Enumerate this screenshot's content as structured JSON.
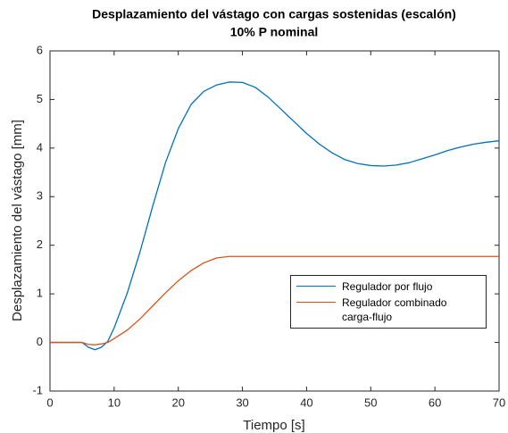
{
  "chart_data": {
    "type": "line",
    "title": "Desplazamiento del vástago con cargas sostenidas (escalón)",
    "subtitle": "10% P nominal",
    "x_label": "Tiempo    [s]",
    "y_label": "Desplazamiento del vástago   [mm]",
    "x": [
      0,
      5,
      6,
      7,
      8,
      9,
      10,
      12,
      14,
      16,
      18,
      20,
      22,
      24,
      26,
      28,
      30,
      32,
      34,
      36,
      38,
      40,
      42,
      44,
      46,
      48,
      50,
      52,
      54,
      56,
      58,
      60,
      62,
      64,
      66,
      68,
      70
    ],
    "series": [
      {
        "name": "Regulador por flujo",
        "color": "#0072bd",
        "values": [
          0,
          0,
          -0.1,
          -0.15,
          -0.1,
          0.02,
          0.3,
          1.0,
          1.85,
          2.8,
          3.7,
          4.4,
          4.9,
          5.17,
          5.3,
          5.36,
          5.35,
          5.25,
          5.05,
          4.8,
          4.55,
          4.3,
          4.08,
          3.9,
          3.76,
          3.68,
          3.64,
          3.63,
          3.65,
          3.7,
          3.78,
          3.86,
          3.95,
          4.02,
          4.08,
          4.12,
          4.15
        ]
      },
      {
        "name": "Regulador combinado carga-flujo",
        "color": "#d95319",
        "values": [
          0,
          0,
          -0.04,
          -0.05,
          -0.03,
          0,
          0.08,
          0.25,
          0.48,
          0.75,
          1.02,
          1.27,
          1.48,
          1.64,
          1.74,
          1.77,
          1.77,
          1.77,
          1.77,
          1.77,
          1.77,
          1.77,
          1.77,
          1.77,
          1.77,
          1.77,
          1.77,
          1.77,
          1.77,
          1.77,
          1.77,
          1.77,
          1.77,
          1.77,
          1.77,
          1.77,
          1.77
        ]
      }
    ],
    "xlim": [
      0,
      70
    ],
    "xticks": [
      0,
      10,
      20,
      30,
      40,
      50,
      60,
      70
    ],
    "ylim": [
      -1,
      6
    ],
    "yticks": [
      -1,
      0,
      1,
      2,
      3,
      4,
      5,
      6
    ],
    "grid": false
  }
}
